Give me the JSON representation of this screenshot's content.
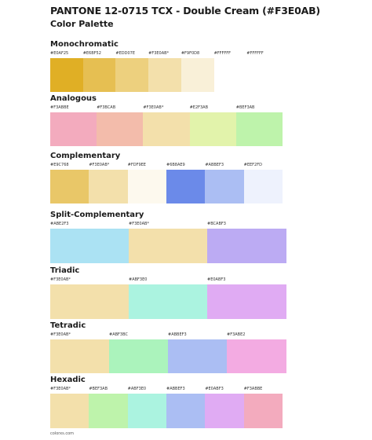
{
  "header": {
    "title": "PANTONE 12-0715 TCX - Double Cream (#F3E0AB)",
    "subtitle": "Color Palette"
  },
  "palettes": [
    {
      "name": "Monochromatic",
      "colors": [
        {
          "hex": "#E0AF25",
          "label": "#E0AF25"
        },
        {
          "hex": "#E6BF52",
          "label": "#E6BF52"
        },
        {
          "hex": "#EDD07E",
          "label": "#EDD07E"
        },
        {
          "hex": "#F3E0AB",
          "label": "#F3E0AB*"
        },
        {
          "hex": "#F9F0D8",
          "label": "#F9F0D8"
        },
        {
          "hex": "#FFFFFF",
          "label": "#FFFFFF"
        },
        {
          "hex": "#FFFFFF",
          "label": "#FFFFFF"
        }
      ]
    },
    {
      "name": "Analogous",
      "colors": [
        {
          "hex": "#F3ABBE",
          "label": "#F3ABBE"
        },
        {
          "hex": "#F3BCAB",
          "label": "#F3BCAB"
        },
        {
          "hex": "#F3E0AB",
          "label": "#F3E0AB*"
        },
        {
          "hex": "#E2F3AB",
          "label": "#E2F3AB"
        },
        {
          "hex": "#BEF3AB",
          "label": "#BEF3AB"
        }
      ]
    },
    {
      "name": "Complementary",
      "colors": [
        {
          "hex": "#E9C768",
          "label": "#E9C768"
        },
        {
          "hex": "#F3E0AB",
          "label": "#F3E0AB*"
        },
        {
          "hex": "#FDF9EE",
          "label": "#FDF9EE"
        },
        {
          "hex": "#6B8AE9",
          "label": "#6B8AE9"
        },
        {
          "hex": "#ABBEF3",
          "label": "#ABBEF3"
        },
        {
          "hex": "#EEF2FD",
          "label": "#EEF2FD"
        }
      ]
    },
    {
      "name": "Split-Complementary",
      "colors": [
        {
          "hex": "#ABE2F3",
          "label": "#ABE2F3"
        },
        {
          "hex": "#F3E0AB",
          "label": "#F3E0AB*"
        },
        {
          "hex": "#BCABF3",
          "label": "#BCABF3"
        }
      ]
    },
    {
      "name": "Triadic",
      "colors": [
        {
          "hex": "#F3E0AB",
          "label": "#F3E0AB*"
        },
        {
          "hex": "#ABF3E0",
          "label": "#ABF3E0"
        },
        {
          "hex": "#E0ABF3",
          "label": "#E0ABF3"
        }
      ]
    },
    {
      "name": "Tetradic",
      "colors": [
        {
          "hex": "#F3E0AB",
          "label": "#F3E0AB*"
        },
        {
          "hex": "#ABF3BC",
          "label": "#ABF3BC"
        },
        {
          "hex": "#ABBEF3",
          "label": "#ABBEF3"
        },
        {
          "hex": "#F3ABE2",
          "label": "#F3ABE2"
        }
      ]
    },
    {
      "name": "Hexadic",
      "colors": [
        {
          "hex": "#F3E0AB",
          "label": "#F3E0AB*"
        },
        {
          "hex": "#BEF3AB",
          "label": "#BEF3AB"
        },
        {
          "hex": "#ABF3E0",
          "label": "#ABF3E0"
        },
        {
          "hex": "#ABBEF3",
          "label": "#ABBEF3"
        },
        {
          "hex": "#E0ABF3",
          "label": "#E0ABF3"
        },
        {
          "hex": "#F3ABBE",
          "label": "#F3ABBE"
        }
      ]
    }
  ],
  "footer": {
    "text": "colorxs.com"
  }
}
